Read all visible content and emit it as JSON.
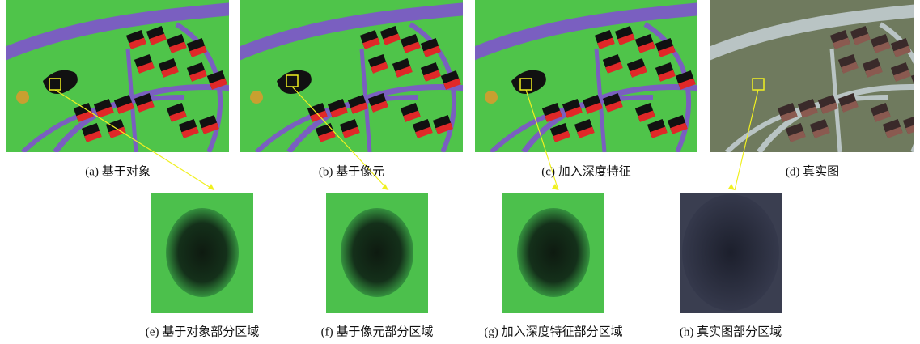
{
  "top_panels": [
    {
      "caption": "(a) 基于对象"
    },
    {
      "caption": "(b) 基于像元"
    },
    {
      "caption": "(c) 加入深度特征"
    },
    {
      "caption": "(d) 真实图"
    }
  ],
  "bottom_panels": [
    {
      "caption": "(e) 基于对象部分区域"
    },
    {
      "caption": "(f) 基于像元部分区域"
    },
    {
      "caption": "(g) 加入深度特征部分区域"
    },
    {
      "caption": "(h) 真实图部分区域"
    }
  ]
}
